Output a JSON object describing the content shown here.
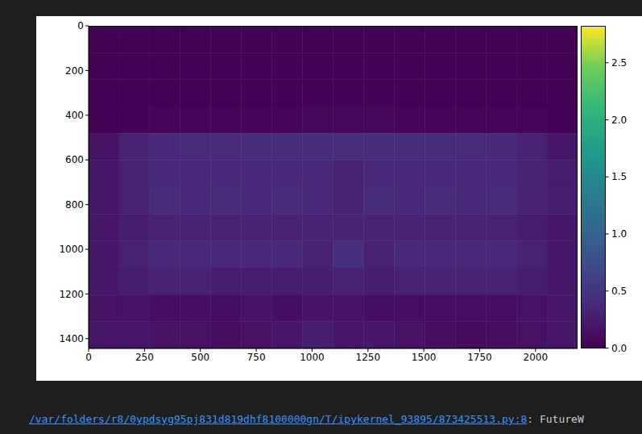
{
  "chart_data": {
    "type": "heatmap",
    "color": "viridis",
    "xlim": [
      0,
      2188
    ],
    "ylim": [
      1444,
      0
    ],
    "xticks": [
      0,
      250,
      500,
      750,
      1000,
      1250,
      1500,
      1750,
      2000
    ],
    "yticks": [
      0,
      200,
      400,
      600,
      800,
      1000,
      1200,
      1400
    ],
    "cells": {
      "x_edges": [
        0,
        136.75,
        273.5,
        410.25,
        547,
        683.75,
        820.5,
        957.25,
        1094,
        1230.75,
        1367.5,
        1504.25,
        1641,
        1777.75,
        1914.5,
        2051.25,
        2188
      ],
      "y_edges": [
        0,
        120.3,
        240.7,
        361,
        481.3,
        601.7,
        722,
        842.3,
        962.7,
        1083,
        1203.3,
        1323.7,
        1444
      ],
      "values": [
        [
          0.01,
          0.01,
          0.01,
          0.01,
          0.01,
          0.01,
          0.01,
          0.01,
          0.01,
          0.01,
          0.01,
          0.01,
          0.01,
          0.01,
          0.01,
          0.01
        ],
        [
          0.01,
          0.01,
          0.01,
          0.01,
          0.01,
          0.01,
          0.01,
          0.01,
          0.01,
          0.01,
          0.01,
          0.01,
          0.01,
          0.01,
          0.01,
          0.01
        ],
        [
          0.01,
          0.01,
          0.01,
          0.01,
          0.01,
          0.01,
          0.01,
          0.01,
          0.01,
          0.01,
          0.01,
          0.01,
          0.01,
          0.01,
          0.01,
          0.01
        ],
        [
          0.01,
          0.02,
          0.04,
          0.04,
          0.04,
          0.04,
          0.04,
          0.05,
          0.06,
          0.05,
          0.04,
          0.04,
          0.04,
          0.04,
          0.03,
          0.02
        ],
        [
          0.15,
          0.3,
          0.35,
          0.38,
          0.38,
          0.4,
          0.4,
          0.4,
          0.42,
          0.4,
          0.4,
          0.4,
          0.38,
          0.36,
          0.3,
          0.2
        ],
        [
          0.2,
          0.3,
          0.35,
          0.35,
          0.35,
          0.35,
          0.35,
          0.35,
          0.3,
          0.35,
          0.35,
          0.35,
          0.35,
          0.35,
          0.3,
          0.25
        ],
        [
          0.2,
          0.3,
          0.4,
          0.35,
          0.4,
          0.35,
          0.4,
          0.35,
          0.3,
          0.4,
          0.35,
          0.4,
          0.35,
          0.4,
          0.3,
          0.25
        ],
        [
          0.18,
          0.25,
          0.3,
          0.3,
          0.3,
          0.3,
          0.3,
          0.3,
          0.3,
          0.3,
          0.3,
          0.3,
          0.3,
          0.3,
          0.25,
          0.2
        ],
        [
          0.2,
          0.3,
          0.35,
          0.35,
          0.35,
          0.35,
          0.35,
          0.3,
          0.45,
          0.3,
          0.35,
          0.35,
          0.35,
          0.35,
          0.3,
          0.2
        ],
        [
          0.2,
          0.25,
          0.3,
          0.3,
          0.25,
          0.25,
          0.25,
          0.25,
          0.3,
          0.25,
          0.3,
          0.3,
          0.3,
          0.3,
          0.25,
          0.2
        ],
        [
          0.15,
          0.15,
          0.12,
          0.12,
          0.12,
          0.15,
          0.12,
          0.15,
          0.15,
          0.12,
          0.12,
          0.12,
          0.12,
          0.12,
          0.15,
          0.2
        ],
        [
          0.2,
          0.2,
          0.15,
          0.15,
          0.12,
          0.15,
          0.2,
          0.25,
          0.2,
          0.2,
          0.15,
          0.12,
          0.1,
          0.12,
          0.15,
          0.2
        ]
      ]
    },
    "colorbar": {
      "range": [
        0,
        2.82
      ],
      "ticks": [
        {
          "value": 0,
          "label": "0.0"
        },
        0.5,
        {
          "value": 1,
          "label": "1.0"
        },
        1.5,
        {
          "value": 2,
          "label": "2.0"
        },
        2.5
      ]
    }
  },
  "notebook_output": {
    "link": "/var/folders/r8/0ypdsyg95pj831d819dhf8100000gn/T/ipykernel_93895/873425513.py:8",
    "text": ": FutureW"
  }
}
